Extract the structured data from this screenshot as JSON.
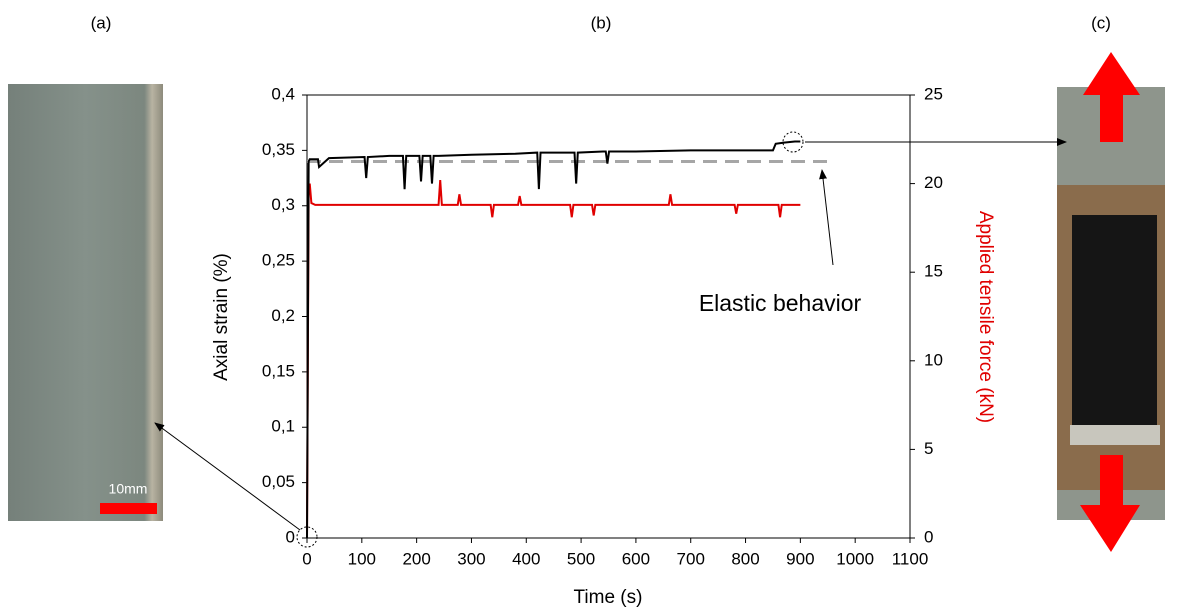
{
  "panel_labels": [
    "(a)",
    "(b)",
    "(c)"
  ],
  "scale_bar_label": "10mm",
  "chart_data": {
    "type": "line",
    "xlabel": "Time (s)",
    "ylabel": "Axial strain (%)",
    "y2label": "Applied tensile force (kN)",
    "annotation": "Elastic behavior",
    "xlim": [
      0,
      1100
    ],
    "xticks": [
      0,
      100,
      200,
      300,
      400,
      500,
      600,
      700,
      800,
      900,
      1000,
      1100
    ],
    "ylim": [
      0,
      0.4
    ],
    "yticks": [
      0,
      {
        "value": 0.05,
        "label": "0,05"
      },
      {
        "value": 0.1,
        "label": "0,1"
      },
      {
        "value": 0.15,
        "label": "0,15"
      },
      {
        "value": 0.2,
        "label": "0,2"
      },
      {
        "value": 0.25,
        "label": "0,25"
      },
      {
        "value": 0.3,
        "label": "0,3"
      },
      {
        "value": 0.35,
        "label": "0,35"
      },
      {
        "value": 0.4,
        "label": "0,4"
      }
    ],
    "y2lim": [
      0,
      25
    ],
    "y2ticks": [
      0,
      5,
      10,
      15,
      20,
      25
    ],
    "series": [
      {
        "color": "#a6a6a6",
        "dashed": true,
        "x": [
          0,
          960
        ],
        "values": [
          0.34,
          0.34
        ]
      },
      {
        "color": "#e00000",
        "axis": "y2",
        "x": [
          0,
          3,
          5,
          8,
          15,
          100,
          240,
          243,
          246,
          275,
          278,
          281,
          335,
          338,
          341,
          385,
          388,
          391,
          480,
          483,
          486,
          520,
          523,
          526,
          660,
          663,
          666,
          780,
          783,
          786,
          860,
          863,
          866,
          900
        ],
        "values": [
          0,
          19.5,
          20,
          18.9,
          18.8,
          18.8,
          18.8,
          20.2,
          18.8,
          18.8,
          19.4,
          18.8,
          18.8,
          18.1,
          18.8,
          18.8,
          19.3,
          18.8,
          18.8,
          18.1,
          18.8,
          18.8,
          18.2,
          18.8,
          18.8,
          19.4,
          18.8,
          18.8,
          18.3,
          18.8,
          18.8,
          18.1,
          18.8,
          18.8
        ]
      },
      {
        "color": "#000000",
        "x": [
          0,
          3,
          5,
          20,
          22,
          40,
          105,
          108,
          111,
          150,
          175,
          178,
          181,
          205,
          208,
          211,
          225,
          228,
          231,
          240,
          300,
          380,
          420,
          423,
          426,
          480,
          488,
          491,
          494,
          540,
          545,
          548,
          551,
          600,
          700,
          800,
          850,
          855,
          870,
          890,
          900
        ],
        "values": [
          0,
          0.34,
          0.342,
          0.342,
          0.335,
          0.343,
          0.344,
          0.325,
          0.344,
          0.345,
          0.345,
          0.315,
          0.345,
          0.345,
          0.322,
          0.345,
          0.345,
          0.32,
          0.345,
          0.345,
          0.346,
          0.347,
          0.348,
          0.315,
          0.348,
          0.348,
          0.348,
          0.32,
          0.348,
          0.349,
          0.349,
          0.338,
          0.349,
          0.349,
          0.35,
          0.35,
          0.35,
          0.356,
          0.357,
          0.358,
          0.358
        ]
      }
    ]
  }
}
